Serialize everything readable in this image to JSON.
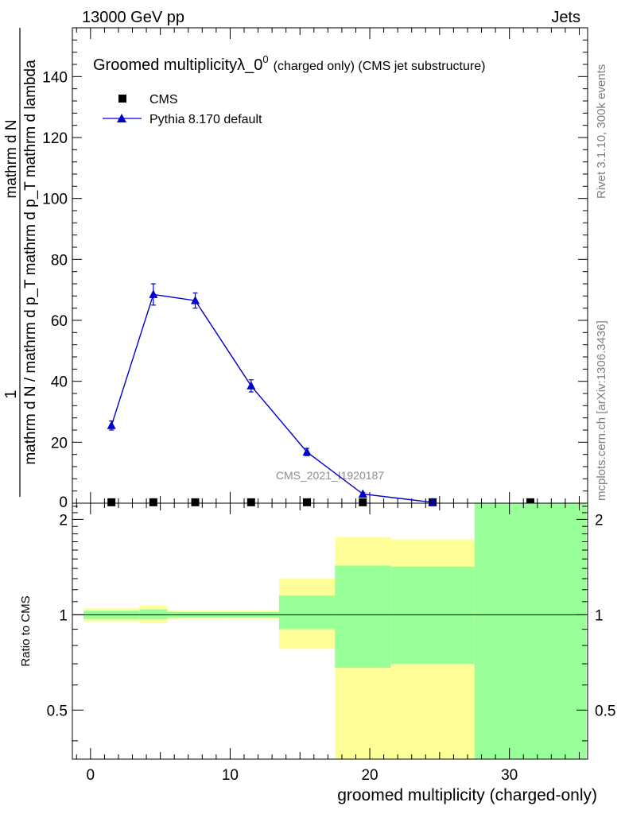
{
  "header": {
    "left": "13000 GeV pp",
    "right": "Jets"
  },
  "side_labels": {
    "rivet": "Rivet 3.1.10,  300k events",
    "mcplots": "mcplots.cern.ch [arXiv:1306.3436]"
  },
  "watermark": "CMS_2021_I1920187",
  "colors": {
    "cms": "#000000",
    "pythia": "#0000cc",
    "band_inner": "#99ff99",
    "band_outer": "#ffff99"
  },
  "chart_data": [
    {
      "type": "line",
      "title": "Groomed multiplicityλ_0",
      "title_sup": "0",
      "title_suffix": "(charged only) (CMS jet substructure)",
      "ylabel_lines": [
        "1",
        "mathrm d N / mathrm d p_T mathrm d p_T mathrm d lambda",
        "mathrm d N"
      ],
      "xlim": [
        -1.3,
        35.6
      ],
      "ylim": [
        0,
        156
      ],
      "y_ticks": [
        20,
        40,
        60,
        80,
        100,
        120,
        140
      ],
      "x_ticks": [
        0,
        10,
        20,
        30
      ],
      "legend": {
        "placement": "top-left",
        "entries": [
          "CMS",
          "Pythia 8.170 default"
        ]
      },
      "series": [
        {
          "name": "CMS",
          "x": [
            1.5,
            4.5,
            7.5,
            11.5,
            15.5,
            19.5,
            24.5,
            31.5
          ],
          "y": [
            0.3,
            0.3,
            0.3,
            0.3,
            0.3,
            0.3,
            0.3,
            0.3
          ]
        },
        {
          "name": "Pythia 8.170 default",
          "x": [
            1.5,
            4.5,
            7.5,
            11.5,
            15.5,
            19.5,
            24.5
          ],
          "y": [
            25.5,
            68.5,
            66.5,
            38.5,
            16.8,
            3.0,
            0.3
          ],
          "err": [
            1.5,
            3.5,
            2.5,
            2.0,
            1.2,
            0.5,
            0.2
          ]
        }
      ]
    },
    {
      "type": "area",
      "ylabel": "Ratio to CMS",
      "xlabel": "groomed multiplicity (charged-only)",
      "xlim": [
        -1.3,
        35.6
      ],
      "ylim": [
        0.35,
        2.25
      ],
      "y_ticks": [
        0.5,
        1,
        2
      ],
      "y_tick_labels": [
        "0.5",
        "1",
        "2"
      ],
      "x_ticks": [
        0,
        10,
        20,
        30
      ],
      "reference_line": 1,
      "bins": [
        {
          "lo": -0.5,
          "hi": 3.5,
          "inner": [
            0.97,
            1.03
          ],
          "outer": [
            0.95,
            1.05
          ]
        },
        {
          "lo": 3.5,
          "hi": 5.5,
          "inner": [
            0.97,
            1.04
          ],
          "outer": [
            0.94,
            1.07
          ]
        },
        {
          "lo": 5.5,
          "hi": 9.5,
          "inner": [
            0.98,
            1.02
          ],
          "outer": [
            0.97,
            1.03
          ]
        },
        {
          "lo": 9.5,
          "hi": 13.5,
          "inner": [
            0.98,
            1.02
          ],
          "outer": [
            0.97,
            1.03
          ]
        },
        {
          "lo": 13.5,
          "hi": 17.5,
          "inner": [
            0.9,
            1.15
          ],
          "outer": [
            0.78,
            1.3
          ]
        },
        {
          "lo": 17.5,
          "hi": 21.5,
          "inner": [
            0.68,
            1.43
          ],
          "outer": [
            0.35,
            1.76
          ]
        },
        {
          "lo": 21.5,
          "hi": 27.5,
          "inner": [
            0.7,
            1.42
          ],
          "outer": [
            0.35,
            1.73
          ]
        },
        {
          "lo": 27.5,
          "hi": 35.5,
          "inner": [
            0.35,
            2.25
          ],
          "outer": [
            0.35,
            2.25
          ]
        }
      ]
    }
  ]
}
